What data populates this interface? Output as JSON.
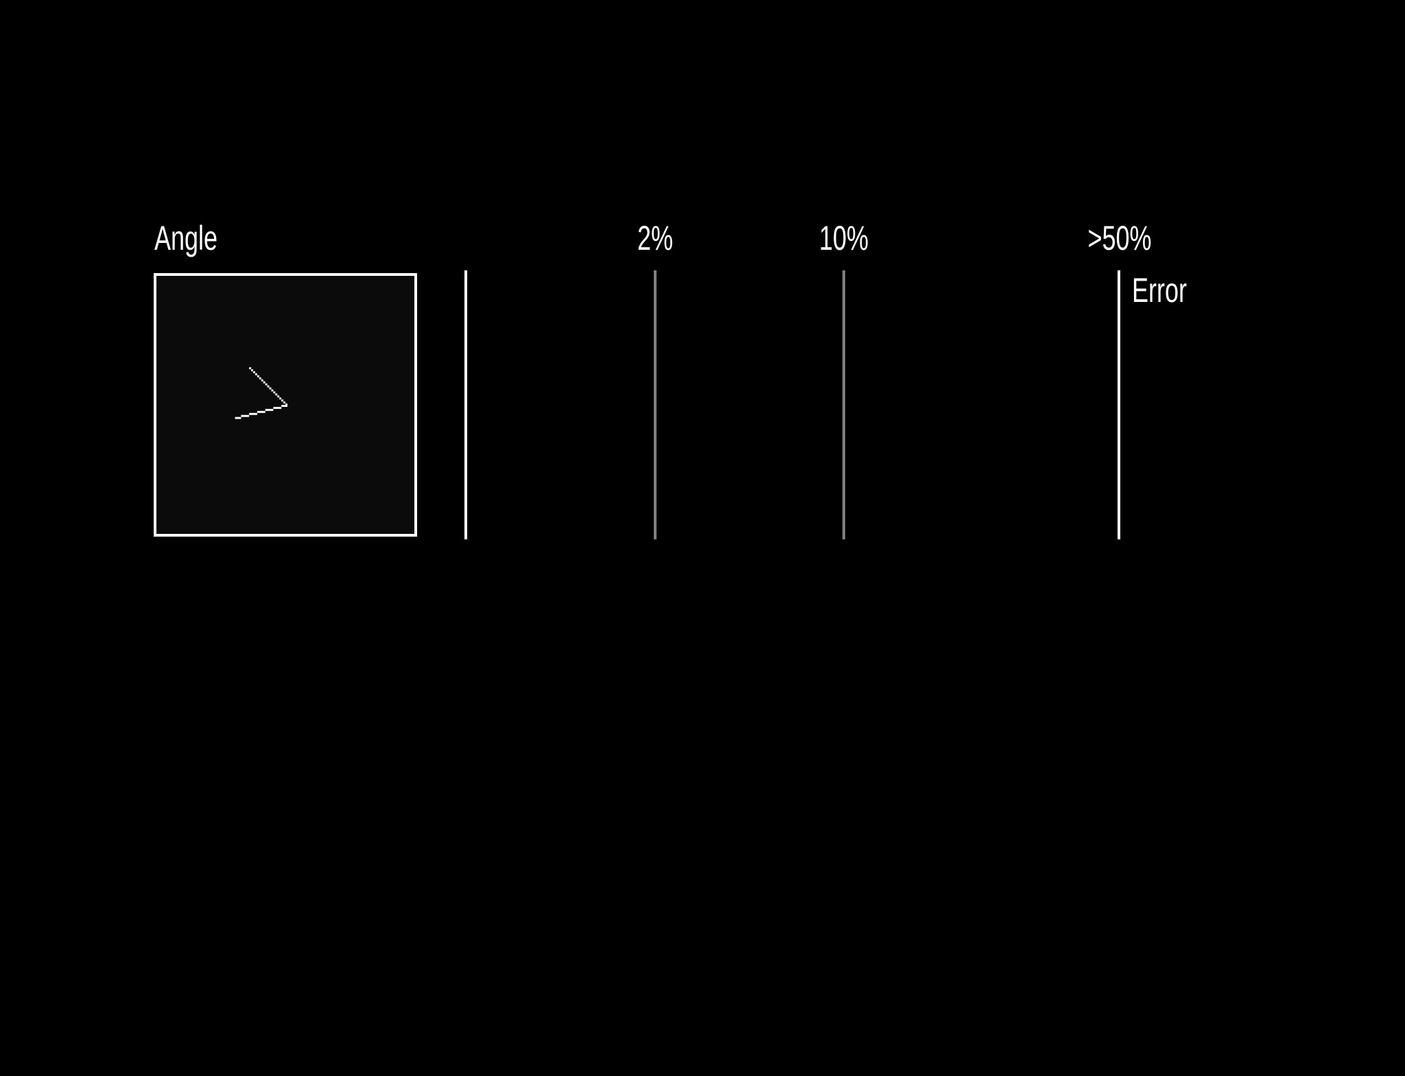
{
  "stimulus": {
    "title": "Angle",
    "glyph": "angle-stimulus-icon"
  },
  "error_scale": {
    "label": "Error",
    "ticks": [
      {
        "label": "2%",
        "color": "#808080"
      },
      {
        "label": "10%",
        "color": "#808080"
      },
      {
        "label": ">50%",
        "color": "#ffffff"
      }
    ]
  },
  "colors": {
    "background": "#000000",
    "foreground": "#ffffff",
    "mid_tick": "#808080"
  }
}
